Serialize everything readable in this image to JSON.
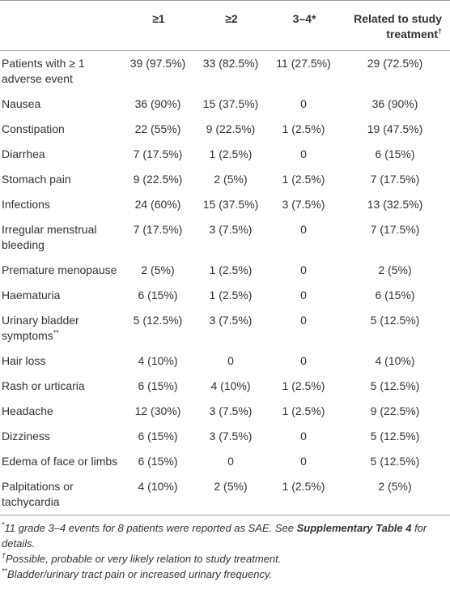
{
  "table": {
    "columns": [
      {
        "text": "≥1"
      },
      {
        "text": "≥2"
      },
      {
        "text": "3–4*"
      },
      {
        "text": "Related to study treatment",
        "sup": "†"
      }
    ],
    "rows": [
      {
        "label": "Patients with ≥ 1 adverse event",
        "cells": [
          "39 (97.5%)",
          "33 (82.5%)",
          "11 (27.5%)",
          "29 (72.5%)"
        ]
      },
      {
        "label": "Nausea",
        "cells": [
          "36 (90%)",
          "15 (37.5%)",
          "0",
          "36 (90%)"
        ]
      },
      {
        "label": "Constipation",
        "cells": [
          "22 (55%)",
          "9 (22.5%)",
          "1 (2.5%)",
          "19 (47.5%)"
        ]
      },
      {
        "label": "Diarrhea",
        "cells": [
          "7 (17.5%)",
          "1 (2.5%)",
          "0",
          "6 (15%)"
        ]
      },
      {
        "label": "Stomach pain",
        "cells": [
          "9 (22.5%)",
          "2 (5%)",
          "1 (2.5%)",
          "7 (17.5%)"
        ]
      },
      {
        "label": "Infections",
        "cells": [
          "24 (60%)",
          "15 (37.5%)",
          "3 (7.5%)",
          "13 (32.5%)"
        ]
      },
      {
        "label": "Irregular menstrual bleeding",
        "cells": [
          "7 (17.5%)",
          "3 (7.5%)",
          "0",
          "7 (17.5%)"
        ]
      },
      {
        "label": "Premature menopause",
        "cells": [
          "2 (5%)",
          "1 (2.5%)",
          "0",
          "2 (5%)"
        ]
      },
      {
        "label": "Haematuria",
        "cells": [
          "6 (15%)",
          "1 (2.5%)",
          "0",
          "6 (15%)"
        ]
      },
      {
        "label": "Urinary bladder symptoms",
        "sup": "**",
        "cells": [
          "5 (12.5%)",
          "3 (7.5%)",
          "0",
          "5 (12.5%)"
        ]
      },
      {
        "label": "Hair loss",
        "cells": [
          "4 (10%)",
          "0",
          "0",
          "4 (10%)"
        ]
      },
      {
        "label": "Rash or urticaria",
        "cells": [
          "6 (15%)",
          "4 (10%)",
          "1 (2.5%)",
          "5 (12.5%)"
        ]
      },
      {
        "label": "Headache",
        "cells": [
          "12 (30%)",
          "3 (7.5%)",
          "1 (2.5%)",
          "9 (22.5%)"
        ]
      },
      {
        "label": "Dizziness",
        "cells": [
          "6 (15%)",
          "3 (7.5%)",
          "0",
          "5 (12.5%)"
        ]
      },
      {
        "label": "Edema of face or limbs",
        "cells": [
          "6 (15%)",
          "0",
          "0",
          "5 (12.5%)"
        ]
      },
      {
        "label": "Palpitations or tachycardia",
        "cells": [
          "4 (10%)",
          "2 (5%)",
          "1 (2.5%)",
          "2 (5%)"
        ]
      }
    ]
  },
  "footnotes": [
    {
      "sup": "*",
      "parts": [
        {
          "text": "11 grade 3–4 events for 8 patients were reported as SAE. See "
        },
        {
          "text": "Supplementary Table 4",
          "bold": true
        },
        {
          "text": " for details."
        }
      ]
    },
    {
      "sup": "†",
      "parts": [
        {
          "text": "Possible, probable or very likely relation to study treatment."
        }
      ]
    },
    {
      "sup": "**",
      "parts": [
        {
          "text": "Bladder/urinary tract pain or increased urinary frequency."
        }
      ]
    }
  ]
}
